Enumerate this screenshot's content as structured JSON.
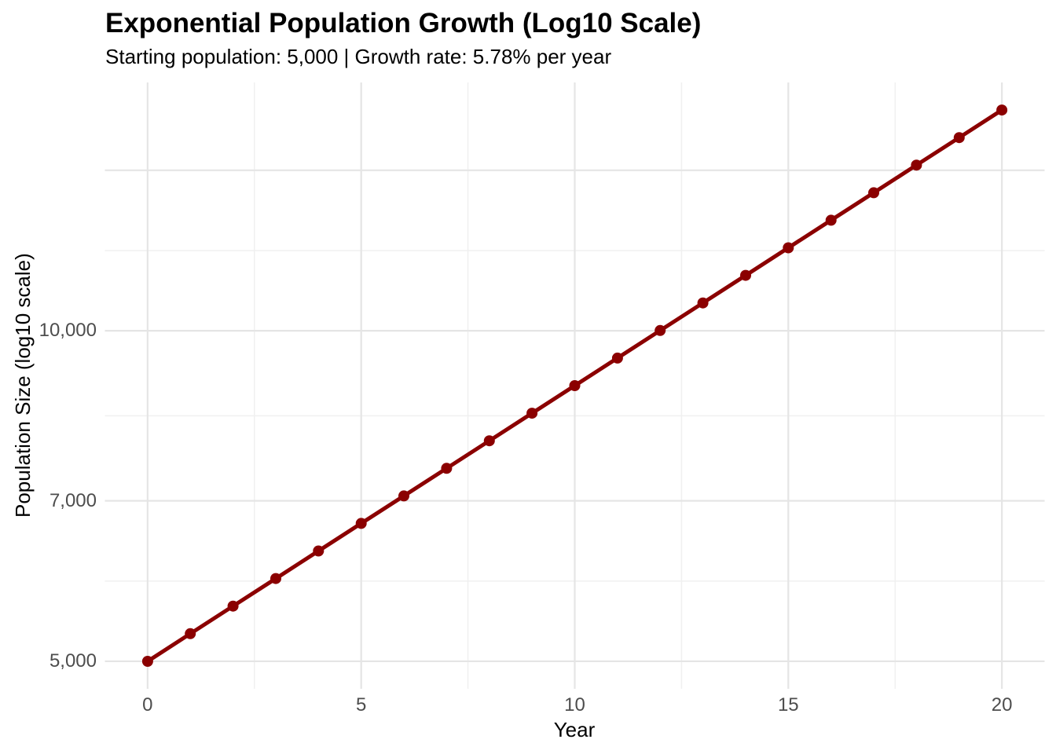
{
  "chart_data": {
    "type": "line",
    "title": "Exponential Population Growth (Log10 Scale)",
    "subtitle": "Starting population: 5,000 | Growth rate: 5.78% per year",
    "xlabel": "Year",
    "ylabel": "Population Size (log10 scale)",
    "starting_population": 5000,
    "growth_rate_percent_per_year": 5.78,
    "y_scale": "log10",
    "grid": true,
    "legend": "none",
    "x": [
      0,
      1,
      2,
      3,
      4,
      5,
      6,
      7,
      8,
      9,
      10,
      11,
      12,
      13,
      14,
      15,
      16,
      17,
      18,
      19,
      20
    ],
    "y": [
      5000,
      5298,
      5613,
      5947,
      6301,
      6676,
      7073,
      7494,
      7939,
      8412,
      8912,
      9443,
      10005,
      10600,
      11231,
      11899,
      12607,
      13357,
      14152,
      14994,
      15886
    ],
    "x_domain": [
      -1,
      21
    ],
    "y_log_domain": [
      3.6739,
      4.2261
    ],
    "x_major_gridlines": [
      0,
      5,
      10,
      15,
      20
    ],
    "x_minor_gridlines": [
      2.5,
      7.5,
      12.5,
      17.5
    ],
    "y_major_gridlines": [
      5000,
      7000,
      10000,
      14000
    ],
    "y_minor_gridlines": [
      5916,
      8367,
      11832
    ],
    "x_tick_labels": [
      {
        "value": 0,
        "label": "0"
      },
      {
        "value": 5,
        "label": "5"
      },
      {
        "value": 10,
        "label": "10"
      },
      {
        "value": 15,
        "label": "15"
      },
      {
        "value": 20,
        "label": "20"
      }
    ],
    "y_tick_labels": [
      {
        "value": 5000,
        "label": "5,000"
      },
      {
        "value": 7000,
        "label": "7,000"
      },
      {
        "value": 10000,
        "label": "10,000"
      }
    ],
    "colors": {
      "line": "#8B0000",
      "point": "#8B0000",
      "grid_major": "#e5e5e5",
      "grid_minor": "#f0f0f0",
      "tick_text": "#4d4d4d",
      "text": "#000000",
      "background": "#ffffff"
    }
  }
}
